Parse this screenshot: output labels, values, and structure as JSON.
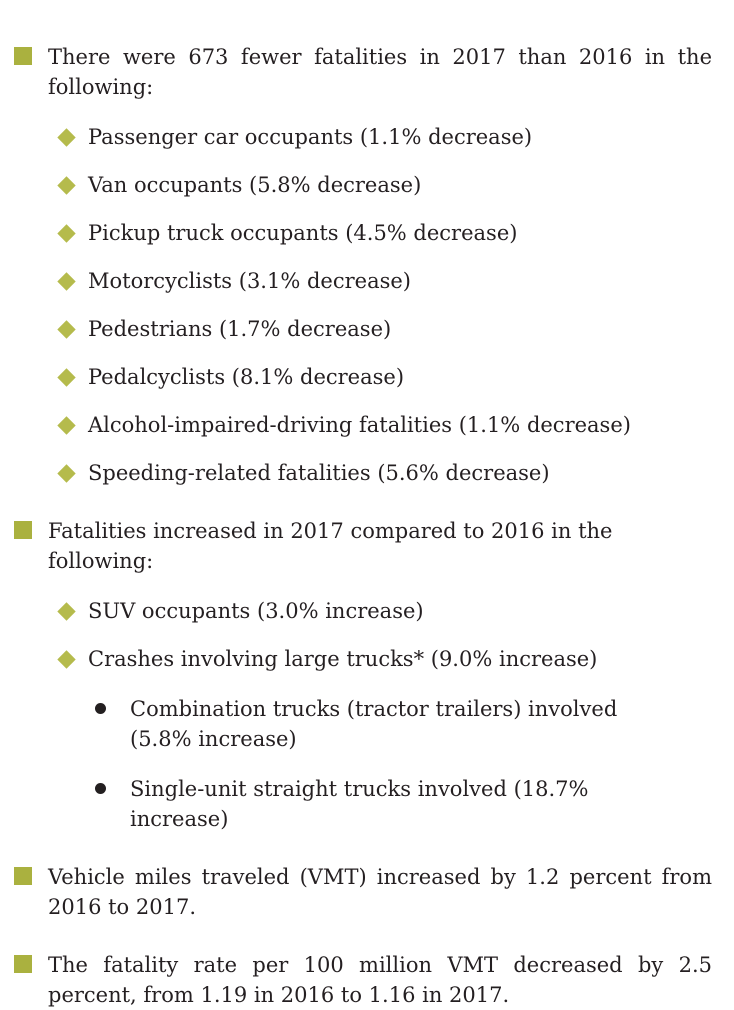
{
  "colors": {
    "square_bullet": "#aab13f",
    "diamond_bullet": "#b5bb4c",
    "dot_bullet": "#231f20",
    "text": "#241f21",
    "background": "#ffffff"
  },
  "sections": [
    {
      "lead": "There were 673 fewer fatalities in 2017 than 2016 in the following:",
      "items": [
        "Passenger car occupants (1.1% decrease)",
        "Van occupants (5.8% decrease)",
        "Pickup truck occupants (4.5% decrease)",
        "Motorcyclists (3.1% decrease)",
        "Pedestrians (1.7% decrease)",
        "Pedalcyclists (8.1% decrease)",
        "Alcohol-impaired-driving fatalities (1.1% decrease)",
        "Speeding-related fatalities (5.6% decrease)"
      ]
    },
    {
      "lead": "Fatalities increased in 2017 compared to 2016 in the following:",
      "items": [
        "SUV occupants (3.0% increase)",
        "Crashes involving large trucks* (9.0% increase)"
      ],
      "subitems": [
        {
          "lines": [
            "Combination trucks (tractor trailers) involved",
            "(5.8% increase)"
          ]
        },
        {
          "lines": [
            "Single-unit straight trucks involved (18.7% increase)"
          ]
        }
      ]
    },
    {
      "lead": "Vehicle miles traveled (VMT) increased by 1.2 percent from 2016 to 2017."
    },
    {
      "lead": "The fatality rate per 100 million VMT decreased by 2.5 percent, from 1.19 in 2016 to 1.16 in 2017."
    }
  ]
}
